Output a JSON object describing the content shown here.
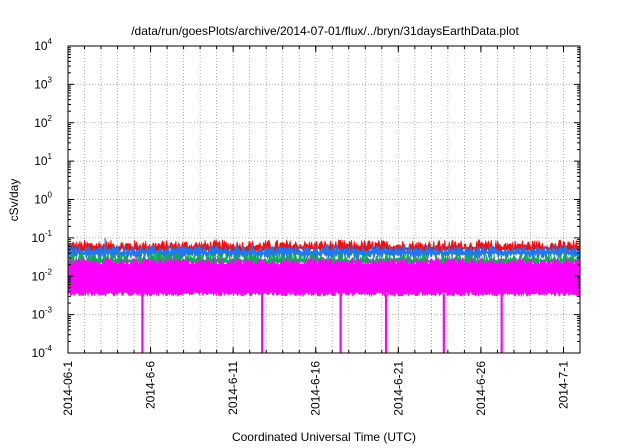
{
  "chart_data": {
    "type": "area",
    "title": "/data/run/goesPlots/archive/2014-07-01/flux/../bryn/31daysEarthData.plot",
    "xlabel": "Coordinated Universal Time (UTC)",
    "ylabel": "cSv/day",
    "x_range": [
      "2014-06-01",
      "2014-07-02"
    ],
    "x_ticks": [
      "2014-06-1",
      "2014-6-6",
      "2014-6-11",
      "2014-6-16",
      "2014-6-21",
      "2014-6-26",
      "2014-7-1"
    ],
    "x_tick_dates": [
      "2014-06-01",
      "2014-06-06",
      "2014-06-11",
      "2014-06-16",
      "2014-06-21",
      "2014-06-26",
      "2014-07-01"
    ],
    "y_scale": "log",
    "ylim": [
      0.0001,
      10000
    ],
    "y_ticks": [
      {
        "base": "10",
        "exp": "4"
      },
      {
        "base": "10",
        "exp": "3"
      },
      {
        "base": "10",
        "exp": "2"
      },
      {
        "base": "10",
        "exp": "1"
      },
      {
        "base": "10",
        "exp": "0"
      },
      {
        "base": "10",
        "exp": "-1"
      },
      {
        "base": "10",
        "exp": "-2"
      },
      {
        "base": "10",
        "exp": "-3"
      },
      {
        "base": "10",
        "exp": "-4"
      }
    ],
    "y_tick_values": [
      10000,
      1000,
      100,
      10,
      1,
      0.1,
      0.01,
      0.001,
      0.0001
    ],
    "grid": true,
    "series": [
      {
        "color": "#ee1111",
        "typical": 0.055,
        "spread_low": 0.04,
        "spread_high": 0.09
      },
      {
        "color": "#2277ee",
        "typical": 0.042,
        "spread_low": 0.028,
        "spread_high": 0.065
      },
      {
        "color": "#11aa55",
        "typical": 0.025,
        "spread_low": 0.017,
        "spread_high": 0.04
      },
      {
        "color": "#ff00ff",
        "typical": 0.02,
        "spread_low": 0.003,
        "spread_high": 0.03
      }
    ],
    "dropouts": [
      {
        "date": "2014-06-05T12:00",
        "value": 0.0001
      },
      {
        "date": "2014-06-12T18:00",
        "value": 0.0001
      },
      {
        "date": "2014-06-17T12:00",
        "value": 0.0001
      },
      {
        "date": "2014-06-20T06:00",
        "value": 0.0001
      },
      {
        "date": "2014-06-23T18:00",
        "value": 0.0001
      },
      {
        "date": "2014-06-27T06:00",
        "value": 0.0001
      }
    ],
    "spike": {
      "date": "2014-06-03T06:00",
      "value": 0.1
    }
  }
}
